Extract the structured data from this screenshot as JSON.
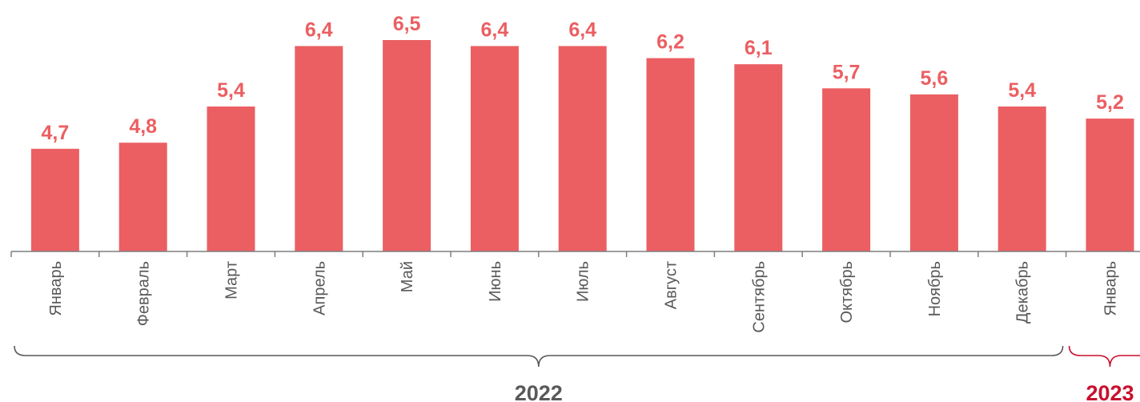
{
  "chart_data": {
    "type": "bar",
    "categories": [
      "Январь",
      "Февраль",
      "Март",
      "Апрель",
      "Май",
      "Июнь",
      "Июль",
      "Август",
      "Сентябрь",
      "Октябрь",
      "Ноябрь",
      "Декабрь",
      "Январь"
    ],
    "values": [
      4.7,
      4.8,
      5.4,
      6.4,
      6.5,
      6.4,
      6.4,
      6.2,
      6.1,
      5.7,
      5.6,
      5.4,
      5.2
    ],
    "data_labels": [
      "4,7",
      "4,8",
      "5,4",
      "6,4",
      "6,5",
      "6,4",
      "6,4",
      "6,2",
      "6,1",
      "5,7",
      "5,6",
      "5,4",
      "5,2"
    ],
    "year_groups": [
      {
        "label": "2022",
        "start": 0,
        "end": 11,
        "color": "#595959"
      },
      {
        "label": "2023",
        "start": 12,
        "end": 12,
        "color": "#c8102e"
      }
    ],
    "ylim": [
      3.0,
      6.5
    ],
    "grid": false,
    "legend": "none",
    "bar_color": "#eb5f62",
    "label_color": "#eb5f62",
    "axis_color": "#7f7f7f"
  }
}
